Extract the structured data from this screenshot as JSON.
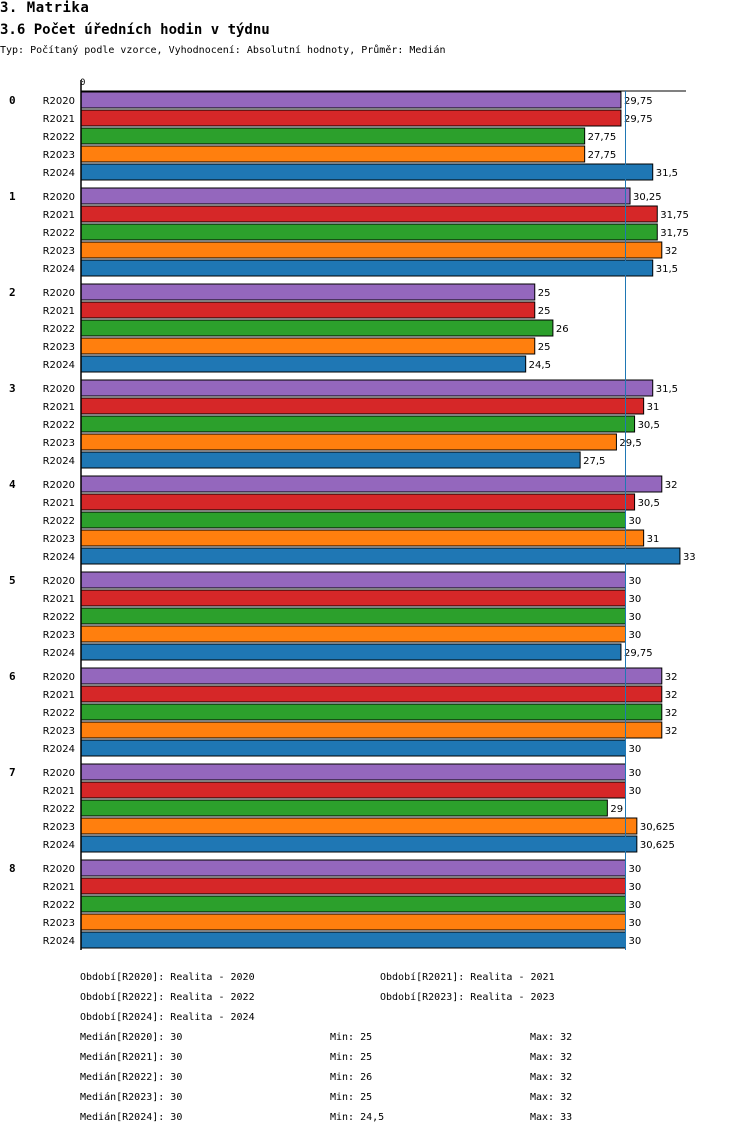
{
  "header": {
    "section": "3. Matrika",
    "title": "3.6 Počet úředních hodin v týdnu",
    "subtitle": "Typ: Počítaný podle vzorce, Vyhodnocení: Absolutní hodnoty, Průměr: Medián"
  },
  "chart_data": {
    "type": "bar",
    "orientation": "horizontal",
    "axis_zero_label": "0",
    "xlim": [
      0,
      33
    ],
    "reference_line": {
      "name": "Medián",
      "value": 30
    },
    "categories": [
      "0",
      "1",
      "2",
      "3",
      "4",
      "5",
      "6",
      "7",
      "8"
    ],
    "series": [
      {
        "name": "R2020",
        "color": "#9467bd",
        "values": [
          29.75,
          30.25,
          25,
          31.5,
          32,
          30,
          32,
          30,
          30
        ],
        "labels": [
          "29,75",
          "30,25",
          "25",
          "31,5",
          "32",
          "30",
          "32",
          "30",
          "30"
        ]
      },
      {
        "name": "R2021",
        "color": "#d62728",
        "values": [
          29.75,
          31.75,
          25,
          31,
          30.5,
          30,
          32,
          30,
          30
        ],
        "labels": [
          "29,75",
          "31,75",
          "25",
          "31",
          "30,5",
          "30",
          "32",
          "30",
          "30"
        ]
      },
      {
        "name": "R2022",
        "color": "#2ca02c",
        "values": [
          27.75,
          31.75,
          26,
          30.5,
          30,
          30,
          32,
          29,
          30
        ],
        "labels": [
          "27,75",
          "31,75",
          "26",
          "30,5",
          "30",
          "30",
          "32",
          "29",
          "30"
        ]
      },
      {
        "name": "R2023",
        "color": "#ff7f0e",
        "values": [
          27.75,
          32,
          25,
          29.5,
          31,
          30,
          32,
          30.625,
          30
        ],
        "labels": [
          "27,75",
          "32",
          "25",
          "29,5",
          "31",
          "30",
          "32",
          "30,625",
          "30"
        ]
      },
      {
        "name": "R2024",
        "color": "#1f77b4",
        "values": [
          31.5,
          31.5,
          24.5,
          27.5,
          33,
          29.75,
          30,
          30.625,
          30
        ],
        "labels": [
          "31,5",
          "31,5",
          "24,5",
          "27,5",
          "33",
          "29,75",
          "30",
          "30,625",
          "30"
        ]
      }
    ]
  },
  "legend": [
    "Období[R2020]: Realita - 2020",
    "Období[R2021]: Realita - 2021",
    "Období[R2022]: Realita - 2022",
    "Období[R2023]: Realita - 2023",
    "Období[R2024]: Realita - 2024"
  ],
  "stats": [
    {
      "median": "Medián[R2020]: 30",
      "min": "Min: 25",
      "max": "Max: 32"
    },
    {
      "median": "Medián[R2021]: 30",
      "min": "Min: 25",
      "max": "Max: 32"
    },
    {
      "median": "Medián[R2022]: 30",
      "min": "Min: 26",
      "max": "Max: 32"
    },
    {
      "median": "Medián[R2023]: 30",
      "min": "Min: 25",
      "max": "Max: 32"
    },
    {
      "median": "Medián[R2024]: 30",
      "min": "Min: 24,5",
      "max": "Max: 33"
    }
  ]
}
